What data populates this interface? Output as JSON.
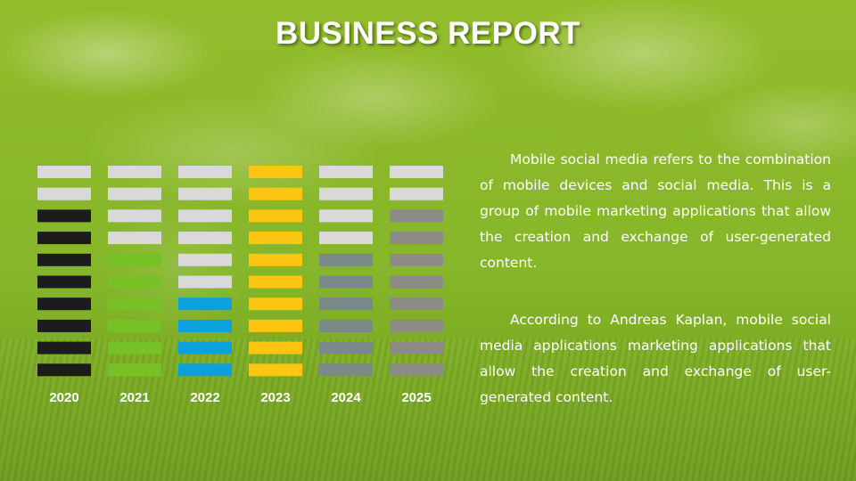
{
  "title": "BUSINESS REPORT",
  "paragraphs": [
    "Mobile social media refers to the combination of mobile devices and social media. This is a group of mobile marketing applications that allow the creation and exchange of user-generated content.",
    "According to Andreas Kaplan, mobile social media applications marketing applications that allow the creation and exchange of user-generated content."
  ],
  "chart_data": {
    "type": "bar",
    "categories": [
      "2020",
      "2021",
      "2022",
      "2023",
      "2024",
      "2025"
    ],
    "segments_total": 10,
    "values": [
      8,
      6,
      4,
      10,
      6,
      8
    ],
    "colors": [
      "#1c1c1c",
      "#77c025",
      "#0aa1dd",
      "#fbc512",
      "#7b8a88",
      "#8d8b86"
    ],
    "empty_color": "#d9d9d9"
  }
}
